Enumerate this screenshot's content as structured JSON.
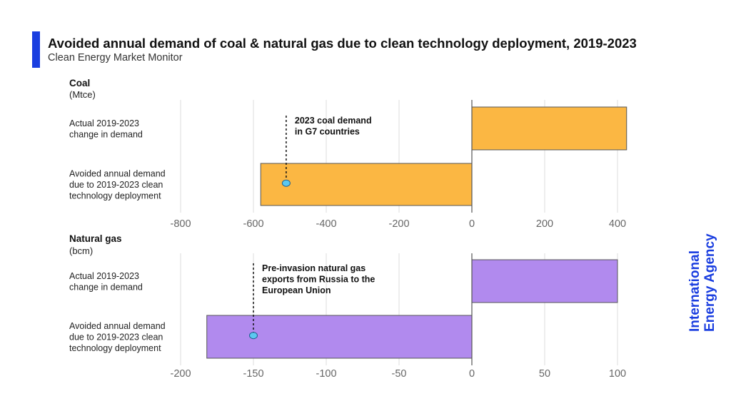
{
  "header": {
    "title": "Avoided annual demand of coal & natural gas due to clean technology deployment, 2019-2023",
    "subtitle": "Clean Energy Market Monitor"
  },
  "brand": {
    "line1": "International",
    "line2": "Energy Agency",
    "color": "#1a3ee0"
  },
  "chart_data": [
    {
      "type": "bar",
      "orientation": "horizontal",
      "panel_title": "Coal",
      "unit": "(Mtce)",
      "categories": [
        [
          "Actual 2019-2023",
          "change in demand"
        ],
        [
          "Avoided annual demand",
          "due to 2019-2023 clean",
          "technology deployment"
        ]
      ],
      "values": [
        425,
        -580
      ],
      "xlim": [
        -800,
        400
      ],
      "xticks": [
        -800,
        -600,
        -400,
        -200,
        0,
        200,
        400
      ],
      "color": "#fbb743",
      "grid": true,
      "annotation": {
        "lines": [
          "2023 coal demand",
          "in G7 countries"
        ],
        "value": -510
      }
    },
    {
      "type": "bar",
      "orientation": "horizontal",
      "panel_title": "Natural gas",
      "unit": "(bcm)",
      "categories": [
        [
          "Actual 2019-2023",
          "change in demand"
        ],
        [
          "Avoided annual demand",
          "due to 2019-2023 clean",
          "technology deployment"
        ]
      ],
      "values": [
        100,
        -182
      ],
      "xlim": [
        -200,
        100
      ],
      "xticks": [
        -200,
        -150,
        -100,
        -50,
        0,
        50,
        100
      ],
      "color": "#b18aee",
      "grid": true,
      "annotation": {
        "lines": [
          "Pre-invasion natural gas",
          "exports from Russia to the",
          "European Union"
        ],
        "value": -150
      }
    }
  ]
}
